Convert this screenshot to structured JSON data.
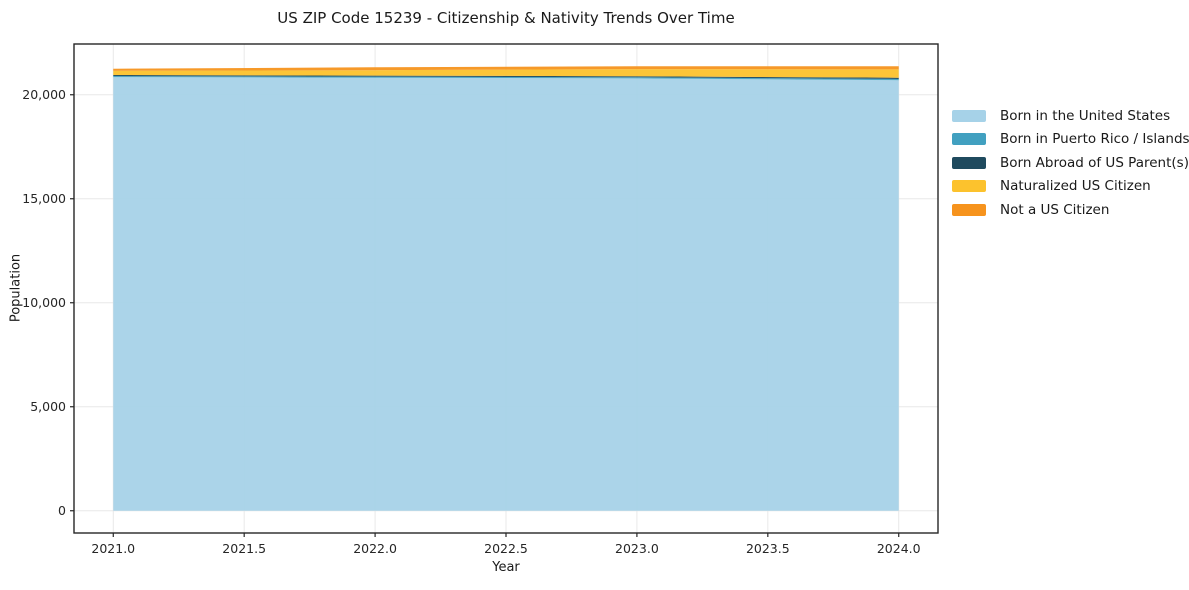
{
  "title": "US ZIP Code 15239 - Citizenship & Nativity Trends Over Time",
  "chart_data": {
    "type": "area",
    "stacked": true,
    "title": "US ZIP Code 15239 - Citizenship & Nativity Trends Over Time",
    "xlabel": "Year",
    "ylabel": "Population",
    "x": [
      2021,
      2022,
      2023,
      2024
    ],
    "series": [
      {
        "name": "Born in the United States",
        "color": "#a6d2e8",
        "values": [
          20850,
          20820,
          20790,
          20700
        ]
      },
      {
        "name": "Born in Puerto Rico / Islands",
        "color": "#41a0c0",
        "values": [
          50,
          50,
          50,
          60
        ]
      },
      {
        "name": "Born Abroad of US Parent(s)",
        "color": "#1f4a5e",
        "values": [
          50,
          50,
          50,
          60
        ]
      },
      {
        "name": "Naturalized US Citizen",
        "color": "#fcc22d",
        "values": [
          200,
          260,
          340,
          400
        ]
      },
      {
        "name": "Not a US Citizen",
        "color": "#f6931d",
        "values": [
          100,
          140,
          140,
          150
        ]
      }
    ],
    "xlim": [
      2020.85,
      2024.15
    ],
    "ylim": [
      -1070,
      22440
    ],
    "xticks": {
      "values": [
        2021.0,
        2021.5,
        2022.0,
        2022.5,
        2023.0,
        2023.5,
        2024.0
      ],
      "labels": [
        "2021.0",
        "2021.5",
        "2022.0",
        "2022.5",
        "2023.0",
        "2023.5",
        "2024.0"
      ]
    },
    "yticks": {
      "values": [
        0,
        5000,
        10000,
        15000,
        20000
      ],
      "labels": [
        "0",
        "5,000",
        "10,000",
        "15,000",
        "20,000"
      ]
    },
    "grid": true,
    "legend_position": "right",
    "fill_opacity": 0.95,
    "colors": {
      "spine": "#262626",
      "grid": "#e8e8e8",
      "tick_text": "#262626"
    }
  }
}
